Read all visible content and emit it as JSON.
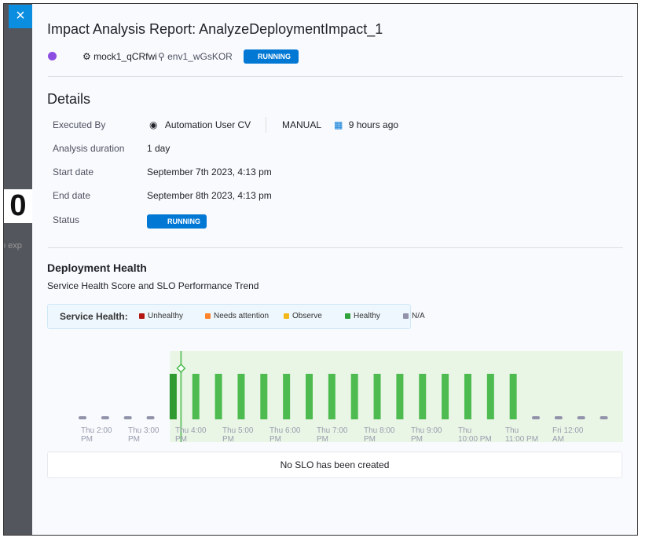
{
  "background": {
    "big_number": "0",
    "fragment": "o exp"
  },
  "header": {
    "close": "×",
    "title": "Impact Analysis Report: AnalyzeDeploymentImpact_1",
    "service": "mock1_qCRfwi",
    "environment": "env1_wGsKOR",
    "status": "RUNNING"
  },
  "details": {
    "title": "Details",
    "executed_by": {
      "label": "Executed By",
      "user": "Automation User CV",
      "trigger": "MANUAL",
      "time": "9 hours ago"
    },
    "rows": [
      {
        "label": "Analysis duration",
        "value": "1 day"
      },
      {
        "label": "Start date",
        "value": "September 7th 2023, 4:13 pm"
      },
      {
        "label": "End date",
        "value": "September 8th 2023, 4:13 pm"
      }
    ],
    "status": {
      "label": "Status",
      "value": "RUNNING"
    }
  },
  "deployment_health": {
    "title": "Deployment Health",
    "subtitle": "Service Health Score and SLO Performance Trend",
    "legend_title": "Service Health:",
    "legend": [
      {
        "name": "Unhealthy",
        "color": "#b41710"
      },
      {
        "name": "Needs attention",
        "color": "#ff832b"
      },
      {
        "name": "Observe",
        "color": "#f3b817"
      },
      {
        "name": "Healthy",
        "color": "#30a33b"
      },
      {
        "name": "N/A",
        "color": "#9293ab"
      }
    ],
    "chart_data": {
      "type": "bar",
      "color": "#4dbb50",
      "ylim": [
        0,
        100
      ],
      "values": [
        null,
        null,
        null,
        null,
        100,
        100,
        100,
        100,
        100,
        100,
        100,
        100,
        100,
        100,
        100,
        100,
        100,
        100,
        100,
        100,
        null,
        null,
        null,
        null
      ],
      "x_labels": [
        "Thu 2:00 PM",
        "Thu 3:00 PM",
        "Thu 4:00 PM",
        "Thu 5:00 PM",
        "Thu 6:00 PM",
        "Thu 7:00 PM",
        "Thu 8:00 PM",
        "Thu 9:00 PM",
        "Thu 10:00 PM",
        "Thu 11:00 PM",
        "Fri 12:00 AM"
      ]
    },
    "slo_message": "No SLO has been created"
  }
}
